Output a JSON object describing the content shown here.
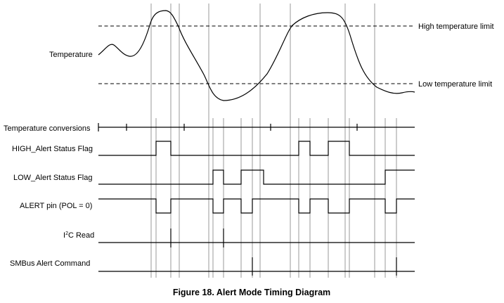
{
  "limits": {
    "high_label": "High temperature limit",
    "low_label": "Low temperature limit"
  },
  "signals": {
    "temperature": "Temperature",
    "conversions": "Temperature conversions",
    "high_flag": "HIGH_Alert Status Flag",
    "low_flag": "LOW_Alert Status Flag",
    "alert_pin": "ALERT pin (POL = 0)",
    "i2c_read_prefix": "I",
    "i2c_read_sup": "2",
    "i2c_read_suffix": "C Read",
    "smbus_cmd": "SMBus Alert Command"
  },
  "caption": "Figure 18.  Alert Mode Timing Diagram"
}
